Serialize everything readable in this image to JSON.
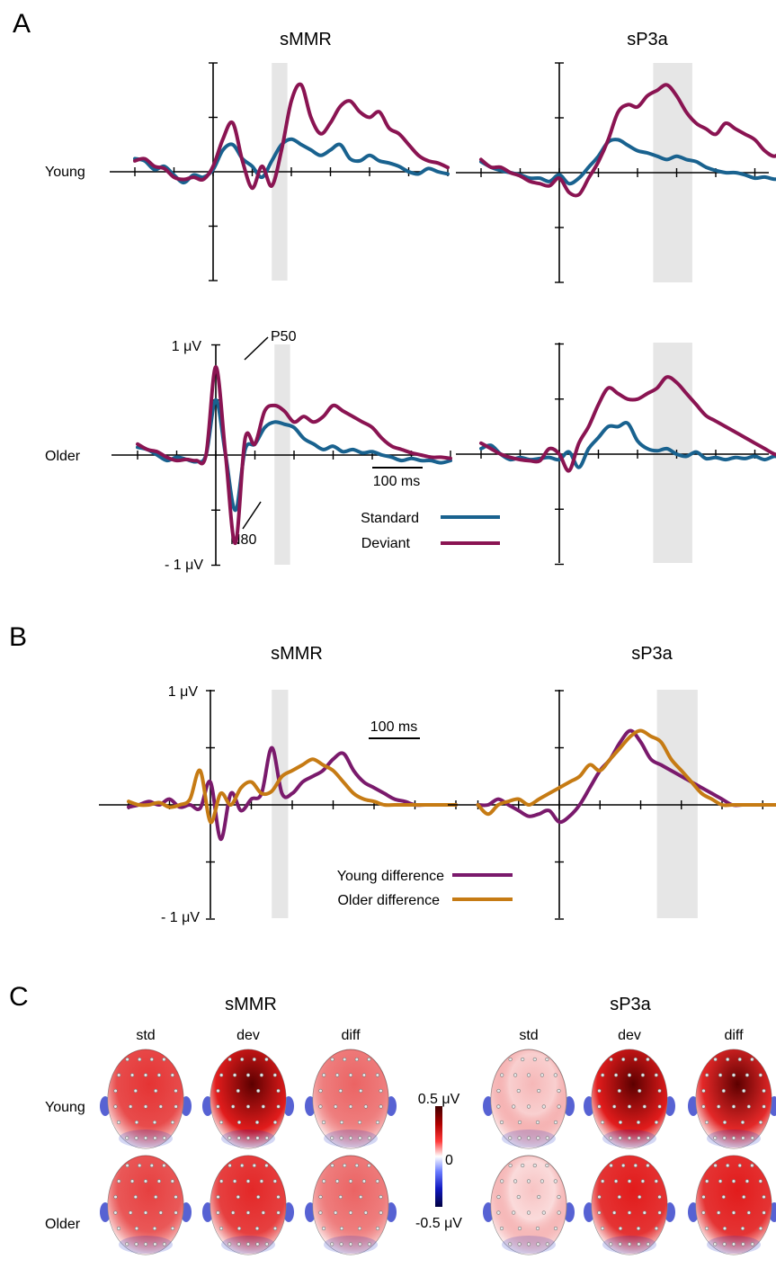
{
  "panels": {
    "A": {
      "letter": "A",
      "col_titles": [
        "sMMR",
        "sP3a"
      ],
      "row_labels": [
        "Young",
        "Older"
      ],
      "y_top_label": "1 μV",
      "y_bottom_label": "- 1 μV",
      "scale_bar_label": "100 ms",
      "peak_labels": [
        "P50",
        "N80"
      ],
      "legend": [
        "Standard",
        "Deviant"
      ]
    },
    "B": {
      "letter": "B",
      "col_titles": [
        "sMMR",
        "sP3a"
      ],
      "y_top_label": "1 μV",
      "y_bottom_label": "- 1 μV",
      "scale_bar_label": "100 ms",
      "legend": [
        "Young difference",
        "Older difference"
      ]
    },
    "C": {
      "letter": "C",
      "group_titles": [
        "sMMR",
        "sP3a"
      ],
      "conditions": [
        "std",
        "dev",
        "diff"
      ],
      "row_labels": [
        "Young",
        "Older"
      ],
      "colorbar_labels": [
        "0.5 μV",
        "0",
        "-0.5 μV"
      ],
      "colors": {
        "positive": "#e01010",
        "dark_positive": "#5c0000",
        "negative": "#1020c0",
        "neutral": "#ffffff"
      },
      "topo_intensity": {
        "Young": {
          "sMMR": [
            0.75,
            0.95,
            0.55
          ],
          "sP3a": [
            0.2,
            0.95,
            0.9
          ]
        },
        "Older": {
          "sMMR": [
            0.7,
            0.8,
            0.55
          ],
          "sP3a": [
            0.15,
            0.85,
            0.85
          ]
        }
      }
    }
  },
  "colors": {
    "standard": "#19628f",
    "deviant": "#8a1452",
    "young_difference": "#7a1a6c",
    "older_difference": "#c67b14",
    "window": "#e6e6e6"
  },
  "chart_data": [
    {
      "type": "line",
      "panel": "A",
      "group": "Young",
      "component": "sMMR",
      "x": [
        -200,
        -175,
        -150,
        -125,
        -100,
        -75,
        -50,
        -25,
        0,
        25,
        50,
        75,
        100,
        125,
        150,
        175,
        200,
        225,
        250,
        275,
        300,
        325,
        350,
        375,
        400,
        425,
        450,
        475,
        500,
        525,
        550,
        575,
        600
      ],
      "ylim": [
        -1,
        1
      ],
      "window": [
        150,
        190
      ],
      "series": [
        {
          "name": "Standard",
          "values": [
            0.12,
            0.1,
            0.02,
            0.05,
            -0.03,
            -0.1,
            -0.03,
            -0.05,
            0.02,
            0.2,
            0.25,
            0.12,
            0.05,
            -0.05,
            0.1,
            0.25,
            0.3,
            0.25,
            0.2,
            0.15,
            0.2,
            0.25,
            0.12,
            0.1,
            0.15,
            0.1,
            0.08,
            0.05,
            0.0,
            -0.02,
            0.03,
            0.0,
            -0.02
          ]
        },
        {
          "name": "Deviant",
          "values": [
            0.1,
            0.12,
            0.05,
            0.03,
            -0.05,
            -0.07,
            -0.05,
            -0.07,
            0.05,
            0.3,
            0.45,
            0.1,
            -0.15,
            0.05,
            -0.13,
            0.2,
            0.65,
            0.8,
            0.5,
            0.35,
            0.45,
            0.6,
            0.65,
            0.55,
            0.5,
            0.55,
            0.4,
            0.35,
            0.25,
            0.15,
            0.1,
            0.08,
            0.04
          ]
        }
      ]
    },
    {
      "type": "line",
      "panel": "A",
      "group": "Young",
      "component": "sP3a",
      "x": [
        -200,
        -175,
        -150,
        -125,
        -100,
        -75,
        -50,
        -25,
        0,
        25,
        50,
        75,
        100,
        125,
        150,
        175,
        200,
        225,
        250,
        275,
        300,
        325,
        350,
        375,
        400,
        425,
        450,
        475,
        500,
        525,
        550,
        575,
        600
      ],
      "ylim": [
        -1,
        1
      ],
      "window": [
        240,
        340
      ],
      "series": [
        {
          "name": "Standard",
          "values": [
            0.1,
            0.05,
            0.02,
            0.0,
            -0.02,
            -0.05,
            -0.05,
            -0.08,
            -0.02,
            -0.1,
            -0.05,
            0.05,
            0.15,
            0.28,
            0.3,
            0.25,
            0.2,
            0.18,
            0.15,
            0.12,
            0.15,
            0.12,
            0.1,
            0.05,
            0.02,
            0.0,
            0.0,
            -0.02,
            -0.05,
            -0.04,
            -0.06,
            -0.05,
            -0.07
          ]
        },
        {
          "name": "Deviant",
          "values": [
            0.12,
            0.05,
            0.05,
            0.0,
            -0.03,
            -0.08,
            -0.1,
            -0.12,
            -0.05,
            -0.18,
            -0.2,
            -0.05,
            0.1,
            0.3,
            0.55,
            0.62,
            0.6,
            0.7,
            0.75,
            0.8,
            0.7,
            0.55,
            0.45,
            0.4,
            0.35,
            0.45,
            0.4,
            0.35,
            0.3,
            0.2,
            0.15,
            0.2,
            0.1
          ]
        }
      ]
    },
    {
      "type": "line",
      "panel": "A",
      "group": "Older",
      "component": "sMMR",
      "x": [
        -200,
        -175,
        -150,
        -125,
        -100,
        -75,
        -50,
        -25,
        0,
        25,
        50,
        75,
        100,
        125,
        150,
        175,
        200,
        225,
        250,
        275,
        300,
        325,
        350,
        375,
        400,
        425,
        450,
        475,
        500,
        525,
        550,
        575,
        600
      ],
      "ylim": [
        -1,
        1
      ],
      "window": [
        150,
        190
      ],
      "series": [
        {
          "name": "Standard",
          "values": [
            0.07,
            0.05,
            0.0,
            -0.05,
            -0.02,
            -0.04,
            -0.06,
            0.0,
            0.5,
            0.0,
            -0.5,
            0.05,
            0.1,
            0.25,
            0.3,
            0.28,
            0.25,
            0.15,
            0.1,
            0.05,
            0.08,
            0.03,
            0.05,
            0.02,
            0.03,
            0.0,
            -0.02,
            -0.05,
            -0.03,
            -0.05,
            -0.05,
            -0.07,
            -0.05
          ]
        },
        {
          "name": "Deviant",
          "values": [
            0.1,
            0.05,
            0.03,
            -0.02,
            -0.05,
            -0.04,
            -0.05,
            0.0,
            0.8,
            0.0,
            -0.8,
            0.15,
            0.1,
            0.4,
            0.45,
            0.4,
            0.3,
            0.35,
            0.3,
            0.35,
            0.45,
            0.4,
            0.35,
            0.3,
            0.25,
            0.15,
            0.08,
            0.05,
            0.02,
            0.0,
            -0.02,
            -0.02,
            -0.03
          ]
        }
      ]
    },
    {
      "type": "line",
      "panel": "A",
      "group": "Older",
      "component": "sP3a",
      "x": [
        -200,
        -175,
        -150,
        -125,
        -100,
        -75,
        -50,
        -25,
        0,
        25,
        50,
        75,
        100,
        125,
        150,
        175,
        200,
        225,
        250,
        275,
        300,
        325,
        350,
        375,
        400,
        425,
        450,
        475,
        500,
        525,
        550,
        575,
        600
      ],
      "ylim": [
        -1,
        1
      ],
      "window": [
        240,
        340
      ],
      "series": [
        {
          "name": "Standard",
          "values": [
            0.05,
            0.08,
            0.0,
            -0.05,
            -0.03,
            -0.05,
            -0.04,
            -0.03,
            -0.05,
            0.02,
            -0.12,
            0.05,
            0.15,
            0.25,
            0.25,
            0.28,
            0.12,
            0.05,
            0.03,
            0.05,
            0.0,
            -0.02,
            0.02,
            -0.04,
            -0.03,
            -0.05,
            -0.03,
            -0.04,
            -0.02,
            -0.05,
            -0.02,
            -0.04,
            -0.03
          ]
        },
        {
          "name": "Deviant",
          "values": [
            0.1,
            0.05,
            0.0,
            -0.03,
            -0.05,
            -0.06,
            -0.06,
            0.05,
            0.0,
            -0.15,
            0.1,
            0.25,
            0.45,
            0.6,
            0.55,
            0.5,
            0.5,
            0.55,
            0.6,
            0.7,
            0.65,
            0.55,
            0.45,
            0.35,
            0.3,
            0.25,
            0.2,
            0.15,
            0.1,
            0.05,
            0.0,
            -0.02,
            -0.05
          ]
        }
      ]
    },
    {
      "type": "line",
      "panel": "B",
      "component": "sMMR",
      "x": [
        -200,
        -175,
        -150,
        -125,
        -100,
        -75,
        -50,
        -25,
        0,
        25,
        50,
        75,
        100,
        125,
        150,
        175,
        200,
        225,
        250,
        275,
        300,
        325,
        350,
        375,
        400,
        425,
        450,
        475,
        500,
        525,
        550,
        575,
        600
      ],
      "ylim": [
        -1,
        1
      ],
      "window": [
        150,
        190
      ],
      "series": [
        {
          "name": "Young difference",
          "values": [
            -0.02,
            0.0,
            0.03,
            0.0,
            0.05,
            -0.02,
            0.0,
            -0.03,
            0.2,
            -0.3,
            0.1,
            -0.05,
            0.05,
            0.1,
            0.5,
            0.1,
            0.1,
            0.2,
            0.25,
            0.3,
            0.4,
            0.45,
            0.3,
            0.2,
            0.15,
            0.1,
            0.05,
            0.03,
            0.0,
            0.0,
            0.0,
            0.0,
            0.0
          ]
        },
        {
          "name": "Older difference",
          "values": [
            0.03,
            0.0,
            0.0,
            0.02,
            -0.02,
            0.0,
            0.05,
            0.3,
            -0.15,
            0.1,
            0.0,
            0.15,
            0.2,
            0.1,
            0.12,
            0.25,
            0.3,
            0.35,
            0.4,
            0.35,
            0.3,
            0.2,
            0.1,
            0.05,
            0.03,
            0.0,
            0.0,
            0.0,
            0.0,
            0.0,
            0.0,
            0.0,
            0.0
          ]
        }
      ]
    },
    {
      "type": "line",
      "panel": "B",
      "component": "sP3a",
      "x": [
        -200,
        -175,
        -150,
        -125,
        -100,
        -75,
        -50,
        -25,
        0,
        25,
        50,
        75,
        100,
        125,
        150,
        175,
        200,
        225,
        250,
        275,
        300,
        325,
        350,
        375,
        400,
        425,
        450,
        475,
        500,
        525,
        550,
        575,
        600
      ],
      "ylim": [
        -1,
        1
      ],
      "window": [
        240,
        340
      ],
      "series": [
        {
          "name": "Young difference",
          "values": [
            0.0,
            0.0,
            0.05,
            0.0,
            -0.05,
            -0.1,
            -0.08,
            -0.05,
            -0.15,
            -0.1,
            0.0,
            0.15,
            0.3,
            0.4,
            0.55,
            0.65,
            0.55,
            0.4,
            0.35,
            0.3,
            0.25,
            0.2,
            0.15,
            0.1,
            0.05,
            0.0,
            0.0,
            0.0,
            0.0,
            0.0,
            0.0,
            0.0,
            0.0
          ]
        },
        {
          "name": "Older difference",
          "values": [
            0.0,
            -0.08,
            0.0,
            0.03,
            0.05,
            0.0,
            0.05,
            0.1,
            0.15,
            0.2,
            0.25,
            0.35,
            0.3,
            0.4,
            0.5,
            0.6,
            0.65,
            0.6,
            0.55,
            0.4,
            0.3,
            0.2,
            0.1,
            0.05,
            0.0,
            0.0,
            0.0,
            0.0,
            0.0,
            0.0,
            0.0,
            0.0,
            0.0
          ]
        }
      ]
    }
  ]
}
